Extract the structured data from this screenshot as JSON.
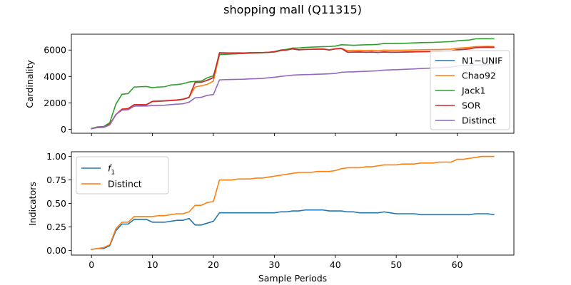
{
  "chart_data": [
    {
      "type": "line",
      "title": "shopping mall (Q11315)",
      "xlabel": "",
      "ylabel": "Cardinality",
      "xlim": [
        -3.3,
        69.3
      ],
      "ylim": [
        -300,
        7200
      ],
      "xticks": [
        0,
        10,
        20,
        30,
        40,
        50,
        60
      ],
      "xticklabels_visible": false,
      "yticks": [
        0,
        2000,
        4000,
        6000
      ],
      "yticklabels": [
        "0",
        "2000",
        "4000",
        "6000"
      ],
      "legend_position": "lower-right",
      "x": [
        0,
        1,
        2,
        3,
        4,
        5,
        6,
        7,
        8,
        9,
        10,
        11,
        12,
        13,
        14,
        15,
        16,
        17,
        18,
        19,
        20,
        21,
        22,
        23,
        24,
        25,
        26,
        27,
        28,
        29,
        30,
        31,
        32,
        33,
        34,
        35,
        36,
        37,
        38,
        39,
        40,
        41,
        42,
        43,
        44,
        45,
        46,
        47,
        48,
        49,
        50,
        51,
        52,
        53,
        54,
        55,
        56,
        57,
        58,
        59,
        60,
        61,
        62,
        63,
        64,
        65,
        66
      ],
      "series": [
        {
          "name": "N1−UNIF",
          "color": "#1f77b4",
          "values": [
            50,
            140,
            150,
            380,
            1100,
            1520,
            1560,
            1850,
            1850,
            1850,
            2100,
            2120,
            2140,
            2170,
            2200,
            2260,
            2400,
            3550,
            3560,
            3700,
            3900,
            5780,
            5770,
            5760,
            5780,
            5770,
            5790,
            5790,
            5800,
            5820,
            5850,
            5950,
            6000,
            6080,
            6010,
            6040,
            6050,
            6060,
            6070,
            6000,
            6080,
            6120,
            5830,
            5840,
            5850,
            5830,
            5840,
            5820,
            5850,
            5830,
            5830,
            5840,
            5850,
            5860,
            5870,
            5880,
            5890,
            5900,
            5920,
            5930,
            6020,
            6050,
            6080,
            6180,
            6200,
            6210,
            6200
          ]
        },
        {
          "name": "Chao92",
          "color": "#ff7f0e",
          "values": [
            50,
            150,
            160,
            390,
            1120,
            1530,
            1570,
            1860,
            1860,
            1870,
            2110,
            2130,
            2150,
            2180,
            2210,
            2270,
            2420,
            3200,
            3300,
            3400,
            3650,
            5650,
            5700,
            5720,
            5740,
            5760,
            5780,
            5790,
            5810,
            5830,
            5860,
            5960,
            6010,
            6090,
            6030,
            6050,
            6060,
            6080,
            6090,
            6020,
            6100,
            6130,
            5960,
            5970,
            5980,
            5960,
            5970,
            5950,
            6000,
            5980,
            5980,
            5990,
            6000,
            6010,
            6020,
            6030,
            6040,
            6040,
            6060,
            6070,
            6140,
            6170,
            6200,
            6260,
            6270,
            6280,
            6270
          ]
        },
        {
          "name": "Jack1",
          "color": "#2ca02c",
          "values": [
            60,
            180,
            200,
            500,
            1900,
            2650,
            2700,
            3200,
            3220,
            3240,
            3150,
            3200,
            3220,
            3350,
            3380,
            3450,
            3580,
            3620,
            3650,
            3900,
            4050,
            5650,
            5680,
            5700,
            5720,
            5740,
            5760,
            5770,
            5800,
            5830,
            5880,
            6000,
            6050,
            6150,
            6160,
            6200,
            6220,
            6240,
            6260,
            6270,
            6300,
            6400,
            6380,
            6360,
            6380,
            6400,
            6410,
            6430,
            6500,
            6490,
            6500,
            6510,
            6520,
            6540,
            6560,
            6570,
            6580,
            6600,
            6620,
            6640,
            6700,
            6730,
            6760,
            6850,
            6860,
            6860,
            6850
          ]
        },
        {
          "name": "SOR",
          "color": "#d62728",
          "values": [
            50,
            140,
            150,
            380,
            1100,
            1520,
            1560,
            1860,
            1860,
            1860,
            2120,
            2140,
            2160,
            2190,
            2220,
            2280,
            2420,
            3550,
            3560,
            3720,
            3920,
            5800,
            5790,
            5780,
            5790,
            5780,
            5800,
            5800,
            5810,
            5830,
            5860,
            5960,
            6010,
            6090,
            6020,
            6050,
            6060,
            6070,
            6080,
            6010,
            6090,
            6130,
            5840,
            5850,
            5860,
            5840,
            5850,
            5830,
            5860,
            5840,
            5840,
            5850,
            5860,
            5870,
            5880,
            5890,
            5900,
            5910,
            5930,
            5940,
            6030,
            6060,
            6090,
            6190,
            6210,
            6220,
            6210
          ]
        },
        {
          "name": "Distinct",
          "color": "#9467bd",
          "values": [
            50,
            130,
            140,
            330,
            1120,
            1450,
            1480,
            1750,
            1760,
            1760,
            1800,
            1810,
            1820,
            1870,
            1900,
            1930,
            2050,
            2380,
            2420,
            2570,
            2630,
            3740,
            3760,
            3770,
            3780,
            3790,
            3820,
            3830,
            3850,
            3900,
            3940,
            4000,
            4050,
            4100,
            4120,
            4140,
            4150,
            4170,
            4180,
            4200,
            4230,
            4320,
            4340,
            4350,
            4370,
            4390,
            4410,
            4430,
            4480,
            4500,
            4510,
            4530,
            4550,
            4570,
            4600,
            4620,
            4640,
            4660,
            4690,
            4710,
            4790,
            4820,
            4850,
            4870,
            4880,
            4890,
            4900
          ]
        }
      ]
    },
    {
      "type": "line",
      "title": "",
      "xlabel": "Sample Periods",
      "ylabel": "Indicators",
      "xlim": [
        -3.3,
        69.3
      ],
      "ylim": [
        -0.05,
        1.05
      ],
      "xticks": [
        0,
        10,
        20,
        30,
        40,
        50,
        60
      ],
      "xticklabels": [
        "0",
        "10",
        "20",
        "30",
        "40",
        "50",
        "60"
      ],
      "yticks": [
        0.0,
        0.25,
        0.5,
        0.75,
        1.0
      ],
      "yticklabels": [
        "0.00",
        "0.25",
        "0.50",
        "0.75",
        "1.00"
      ],
      "legend_position": "upper-left",
      "x": [
        0,
        1,
        2,
        3,
        4,
        5,
        6,
        7,
        8,
        9,
        10,
        11,
        12,
        13,
        14,
        15,
        16,
        17,
        18,
        19,
        20,
        21,
        22,
        23,
        24,
        25,
        26,
        27,
        28,
        29,
        30,
        31,
        32,
        33,
        34,
        35,
        36,
        37,
        38,
        39,
        40,
        41,
        42,
        43,
        44,
        45,
        46,
        47,
        48,
        49,
        50,
        51,
        52,
        53,
        54,
        55,
        56,
        57,
        58,
        59,
        60,
        61,
        62,
        63,
        64,
        65,
        66
      ],
      "series": [
        {
          "name": "f1",
          "label_main": "f",
          "label_sub": "1",
          "color": "#1f77b4",
          "values": [
            0.01,
            0.02,
            0.02,
            0.05,
            0.21,
            0.28,
            0.28,
            0.33,
            0.33,
            0.33,
            0.3,
            0.3,
            0.3,
            0.31,
            0.32,
            0.32,
            0.34,
            0.27,
            0.27,
            0.29,
            0.31,
            0.4,
            0.4,
            0.4,
            0.4,
            0.4,
            0.4,
            0.4,
            0.4,
            0.4,
            0.4,
            0.41,
            0.41,
            0.42,
            0.42,
            0.43,
            0.43,
            0.43,
            0.43,
            0.42,
            0.42,
            0.42,
            0.41,
            0.41,
            0.4,
            0.4,
            0.4,
            0.4,
            0.41,
            0.4,
            0.39,
            0.39,
            0.39,
            0.39,
            0.38,
            0.38,
            0.38,
            0.38,
            0.38,
            0.38,
            0.38,
            0.38,
            0.38,
            0.39,
            0.39,
            0.39,
            0.38
          ]
        },
        {
          "name": "Distinct",
          "label_main": "Distinct",
          "label_sub": "",
          "color": "#ff7f0e",
          "values": [
            0.01,
            0.02,
            0.03,
            0.06,
            0.23,
            0.3,
            0.3,
            0.36,
            0.36,
            0.36,
            0.36,
            0.37,
            0.37,
            0.38,
            0.39,
            0.39,
            0.41,
            0.48,
            0.48,
            0.51,
            0.52,
            0.75,
            0.75,
            0.75,
            0.76,
            0.76,
            0.76,
            0.77,
            0.77,
            0.78,
            0.79,
            0.8,
            0.81,
            0.82,
            0.83,
            0.83,
            0.83,
            0.84,
            0.84,
            0.84,
            0.85,
            0.87,
            0.88,
            0.88,
            0.88,
            0.89,
            0.89,
            0.9,
            0.91,
            0.91,
            0.91,
            0.92,
            0.92,
            0.92,
            0.93,
            0.93,
            0.93,
            0.94,
            0.94,
            0.94,
            0.97,
            0.97,
            0.98,
            0.99,
            1.0,
            1.0,
            1.0
          ]
        }
      ]
    }
  ]
}
